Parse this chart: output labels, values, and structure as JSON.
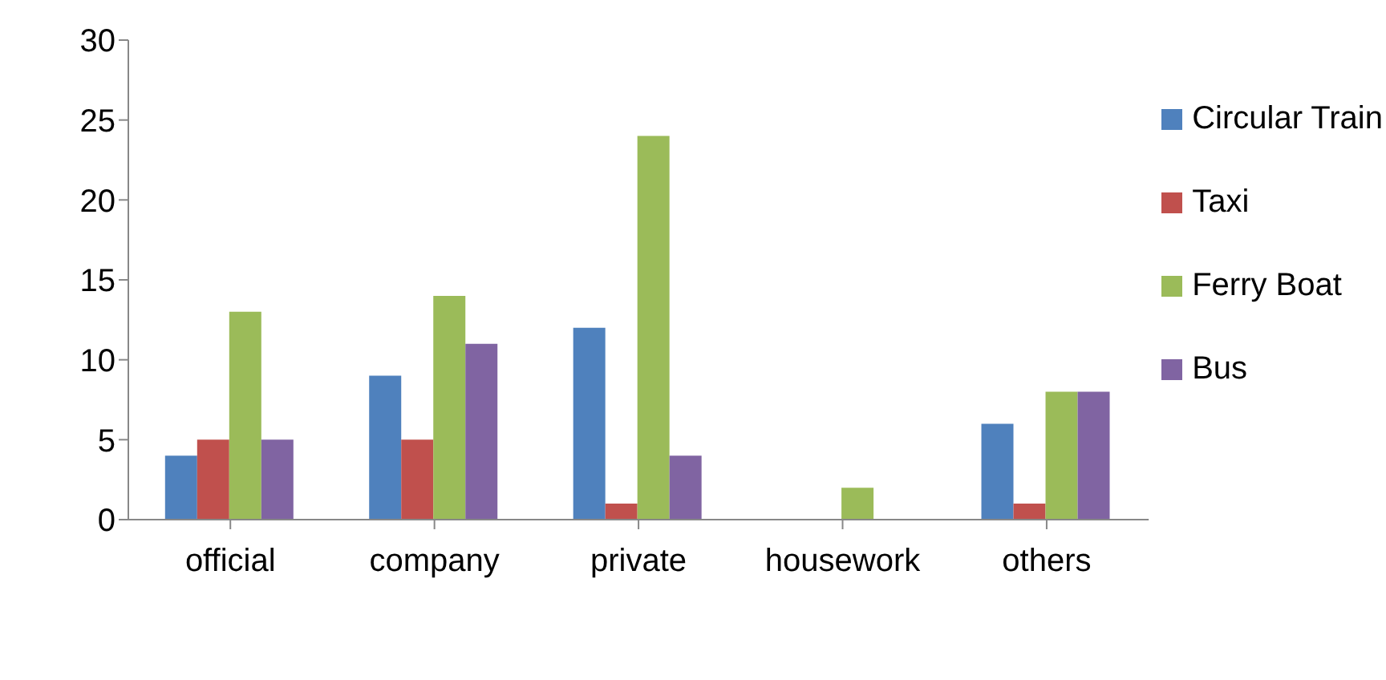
{
  "chart_data": {
    "type": "bar",
    "categories": [
      "official",
      "company",
      "private",
      "housework",
      "others"
    ],
    "series": [
      {
        "name": "Circular Train",
        "color": "#4f81bd",
        "values": [
          4,
          9,
          12,
          0,
          6
        ]
      },
      {
        "name": "Taxi",
        "color": "#c0504d",
        "values": [
          5,
          5,
          1,
          0,
          1
        ]
      },
      {
        "name": "Ferry Boat",
        "color": "#9bbb59",
        "values": [
          13,
          14,
          24,
          2,
          8
        ]
      },
      {
        "name": "Bus",
        "color": "#8064a2",
        "values": [
          5,
          11,
          4,
          0,
          8
        ]
      }
    ],
    "ylim": [
      0,
      30
    ],
    "yticks": [
      0,
      5,
      10,
      15,
      20,
      25,
      30
    ],
    "grid": false,
    "legend": "right"
  }
}
